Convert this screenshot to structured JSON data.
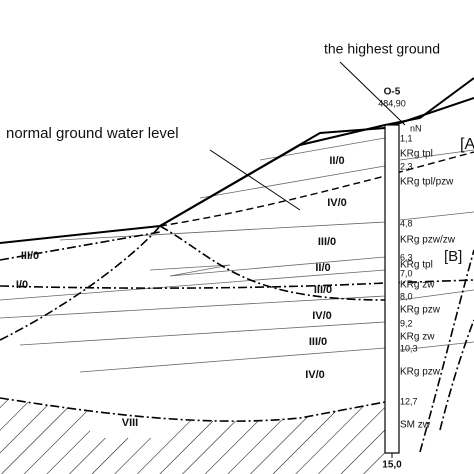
{
  "annotations": {
    "highest_water": "the highest ground",
    "normal_water": "normal ground water level"
  },
  "borehole": {
    "name": "O-5",
    "elevation": "484,90",
    "depths": [
      "1,1",
      "2,3",
      "4,8",
      "6,3",
      "7,0",
      "8,0",
      "9,2",
      "10,3",
      "12,7"
    ],
    "bottom_depth": "15,0",
    "soils": [
      "nN",
      "KRg tpl",
      "KRg tpl/pzw",
      "KRg pzw/zw",
      "KRg tpl",
      "KRg zw",
      "KRg pzw",
      "KRg zw",
      "KRg pzw",
      "SM zw"
    ]
  },
  "markers": [
    "[A",
    "[B]"
  ],
  "zones": [
    "II/0",
    "IV/0",
    "III/0",
    "III/0",
    "I/0",
    "II/0",
    "III/0",
    "IV/0",
    "III/0",
    "IV/0",
    "VIII"
  ]
}
